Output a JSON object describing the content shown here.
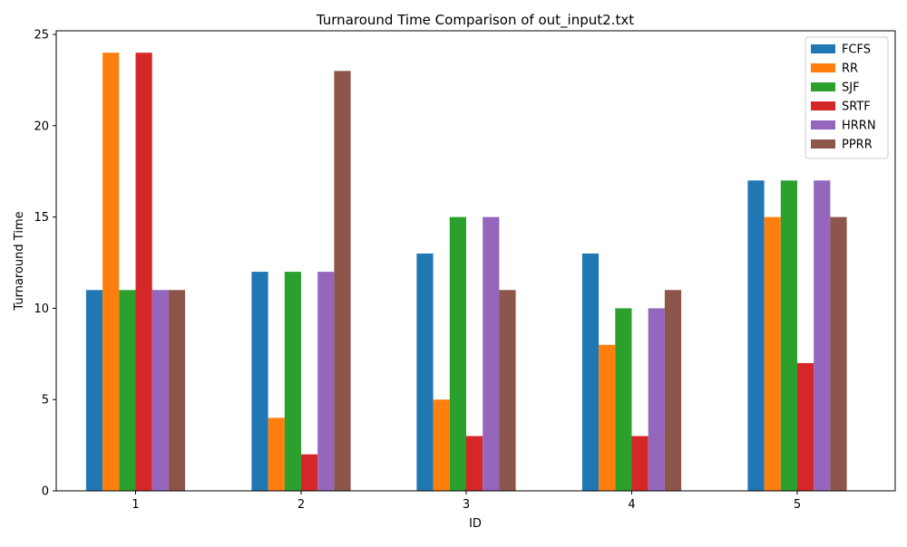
{
  "chart_data": {
    "type": "bar",
    "title": "Turnaround Time Comparison of out_input2.txt",
    "xlabel": "ID",
    "ylabel": "Turnaround Time",
    "categories": [
      "1",
      "2",
      "3",
      "4",
      "5"
    ],
    "ylim": [
      0,
      25.2
    ],
    "yticks": [
      0,
      5,
      10,
      15,
      20,
      25
    ],
    "grid": false,
    "legend_position": "top-right",
    "series": [
      {
        "name": "FCFS",
        "color": "#1f77b4",
        "values": [
          11,
          12,
          13,
          13,
          17
        ]
      },
      {
        "name": "RR",
        "color": "#ff7f0e",
        "values": [
          24,
          4,
          5,
          8,
          15
        ]
      },
      {
        "name": "SJF",
        "color": "#2ca02c",
        "values": [
          11,
          12,
          15,
          10,
          17
        ]
      },
      {
        "name": "SRTF",
        "color": "#d62728",
        "values": [
          24,
          2,
          3,
          3,
          7
        ]
      },
      {
        "name": "HRRN",
        "color": "#9467bd",
        "values": [
          11,
          12,
          15,
          10,
          17
        ]
      },
      {
        "name": "PPRR",
        "color": "#8c564b",
        "values": [
          11,
          23,
          11,
          11,
          15
        ]
      }
    ]
  }
}
